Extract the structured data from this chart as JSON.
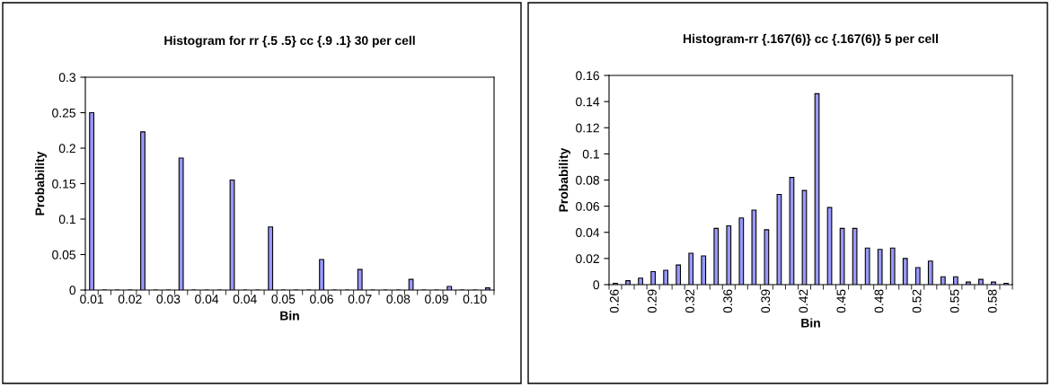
{
  "chart_data": [
    {
      "type": "bar",
      "title": "Histogram for rr {.5 .5} cc {.9 .1} 30 per cell",
      "xlabel": "Bin",
      "ylabel": "Probability",
      "categories": [
        "0.01",
        null,
        null,
        "0.02",
        null,
        null,
        "0.03",
        null,
        null,
        "0.04",
        null,
        null,
        "0.04",
        null,
        null,
        "0.05",
        null,
        null,
        "0.06",
        null,
        null,
        "0.07",
        null,
        null,
        "0.08",
        null,
        null,
        "0.09",
        null,
        null,
        "0.10",
        null
      ],
      "values": [
        0.25,
        0,
        0,
        0,
        0.223,
        0,
        0,
        0.186,
        0,
        0,
        0,
        0.155,
        0,
        0,
        0.089,
        0,
        0,
        0,
        0.043,
        0,
        0,
        0.029,
        0,
        0,
        0,
        0.015,
        0,
        0,
        0.005,
        0,
        0,
        0.003
      ],
      "color": "#9999ff",
      "ylim": [
        0,
        0.3
      ],
      "yticks": [
        0,
        0.05,
        0.1,
        0.15,
        0.2,
        0.25,
        0.3
      ],
      "grid": false,
      "legend": false
    },
    {
      "type": "bar",
      "title": "Histogram-rr {.167(6)} cc {.167(6)} 5 per cell",
      "xlabel": "Bin",
      "ylabel": "Probability",
      "categories": [
        "0.26",
        null,
        null,
        "0.29",
        null,
        null,
        "0.32",
        null,
        null,
        "0.36",
        null,
        null,
        "0.39",
        null,
        null,
        "0.42",
        null,
        null,
        "0.45",
        null,
        null,
        "0.48",
        null,
        null,
        "0.52",
        null,
        null,
        "0.55",
        null,
        null,
        "0.58",
        null
      ],
      "values": [
        0.001,
        0.003,
        0.005,
        0.01,
        0.011,
        0.015,
        0.024,
        0.022,
        0.043,
        0.045,
        0.051,
        0.057,
        0.042,
        0.069,
        0.082,
        0.072,
        0.146,
        0.059,
        0.043,
        0.043,
        0.028,
        0.027,
        0.028,
        0.02,
        0.013,
        0.018,
        0.006,
        0.006,
        0.002,
        0.004,
        0.002,
        0.001
      ],
      "color": "#9999ff",
      "ylim": [
        0,
        0.16
      ],
      "yticks": [
        0,
        0.02,
        0.04,
        0.06,
        0.08,
        0.1,
        0.12,
        0.14,
        0.16
      ],
      "grid": false,
      "legend": false
    }
  ]
}
